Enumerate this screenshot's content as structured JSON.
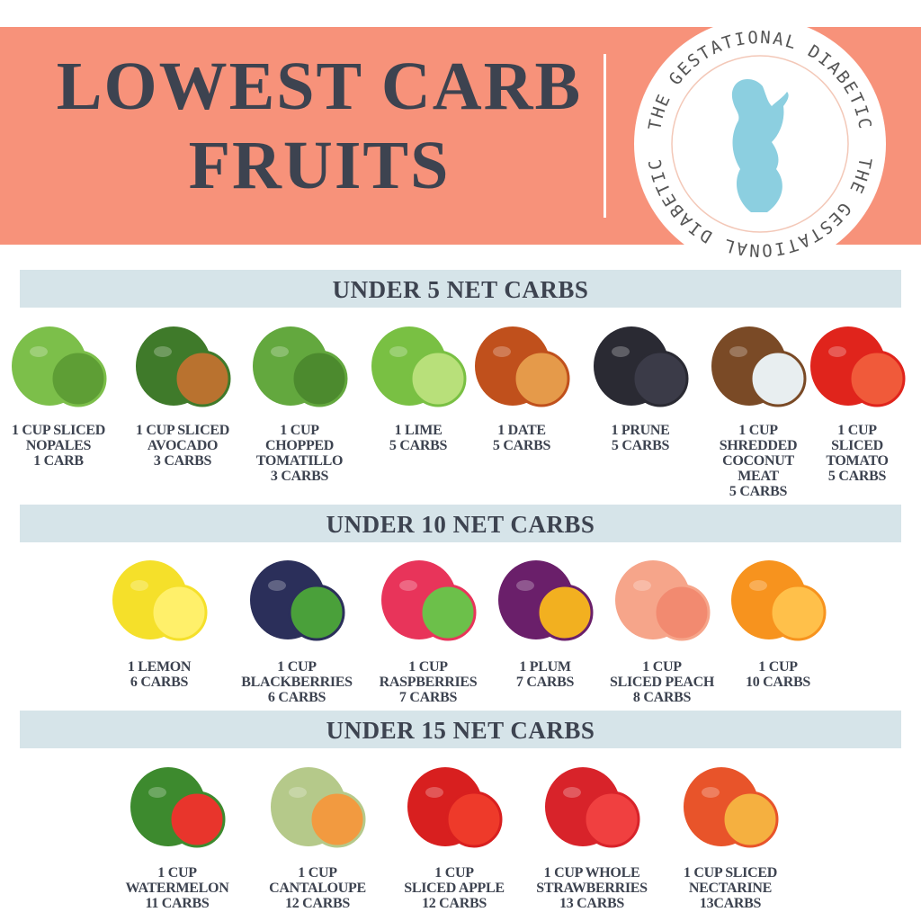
{
  "title": {
    "line1": "LOWEST CARB",
    "line2": "FRUITS"
  },
  "logo": {
    "text": "THE GESTATIONAL DIABETIC",
    "color": "#8ccfe0"
  },
  "colors": {
    "header": "#f7927a",
    "bar": "#d6e4e9",
    "text": "#3d4350"
  },
  "sections": [
    {
      "heading": "UNDER 5 NET CARBS",
      "items": [
        {
          "label": "1 CUP SLICED\nNOPALES\n1 CARB",
          "icon": "nopales-icon",
          "c1": "#7cbf4a",
          "c2": "#5e9e35"
        },
        {
          "label": "1 CUP SLICED\nAVOCADO\n3 CARBS",
          "icon": "avocado-icon",
          "c1": "#3f7a2a",
          "c2": "#b9722f"
        },
        {
          "label": "1 CUP\nCHOPPED\nTOMATILLO\n3 CARBS",
          "icon": "tomatillo-icon",
          "c1": "#63a83e",
          "c2": "#4c8a2e"
        },
        {
          "label": "1 LIME\n5 CARBS",
          "icon": "lime-icon",
          "c1": "#79c043",
          "c2": "#b8e07a"
        },
        {
          "label": "1 DATE\n5 CARBS",
          "icon": "date-icon",
          "c1": "#c0501c",
          "c2": "#e59a4a"
        },
        {
          "label": "1 PRUNE\n5 CARBS",
          "icon": "prune-icon",
          "c1": "#2a2a33",
          "c2": "#3b3b48"
        },
        {
          "label": "1 CUP\nSHREDDED\nCOCONUT\nMEAT\n5 CARBS",
          "icon": "coconut-icon",
          "c1": "#7a4a26",
          "c2": "#e8eef0"
        },
        {
          "label": "1 CUP\nSLICED\nTOMATO\n5 CARBS",
          "icon": "tomato-icon",
          "c1": "#e0241c",
          "c2": "#f05a3a"
        }
      ]
    },
    {
      "heading": "UNDER 10 NET CARBS",
      "items": [
        {
          "label": "1 LEMON\n6 CARBS",
          "icon": "lemon-icon",
          "c1": "#f5e02a",
          "c2": "#fff06a"
        },
        {
          "label": "1 CUP\nBLACKBERRIES\n6 CARBS",
          "icon": "blackberries-icon",
          "c1": "#2b2f5a",
          "c2": "#4aa03a"
        },
        {
          "label": "1 CUP\nRASPBERRIES\n7 CARBS",
          "icon": "raspberries-icon",
          "c1": "#e8345a",
          "c2": "#6cc04a"
        },
        {
          "label": "1 PLUM\n7 CARBS",
          "icon": "plum-icon",
          "c1": "#6a1f6a",
          "c2": "#f2b020"
        },
        {
          "label": "1 CUP\nSLICED PEACH\n8 CARBS",
          "icon": "peach-icon",
          "c1": "#f6a58a",
          "c2": "#f28a70"
        },
        {
          "label": "1 CUP\n10 CARBS",
          "icon": "orange-icon",
          "c1": "#f7931e",
          "c2": "#ffc04a"
        }
      ]
    },
    {
      "heading": "UNDER 15 NET CARBS",
      "items": [
        {
          "label": "1 CUP\nWATERMELON\n11 CARBS",
          "icon": "watermelon-icon",
          "c1": "#3d8a2e",
          "c2": "#e8352c"
        },
        {
          "label": "1 CUP\nCANTALOUPE\n12 CARBS",
          "icon": "cantaloupe-icon",
          "c1": "#b5c98a",
          "c2": "#f29a40"
        },
        {
          "label": "1 CUP\nSLICED APPLE\n12 CARBS",
          "icon": "apple-icon",
          "c1": "#d81f1f",
          "c2": "#ee3a2a"
        },
        {
          "label": "1 CUP WHOLE\nSTRAWBERRIES\n13 CARBS",
          "icon": "strawberries-icon",
          "c1": "#d8232a",
          "c2": "#f04040"
        },
        {
          "label": "1 CUP SLICED\nNECTARINE\n13CARBS",
          "icon": "nectarine-icon",
          "c1": "#e8542a",
          "c2": "#f5b040"
        }
      ]
    }
  ]
}
